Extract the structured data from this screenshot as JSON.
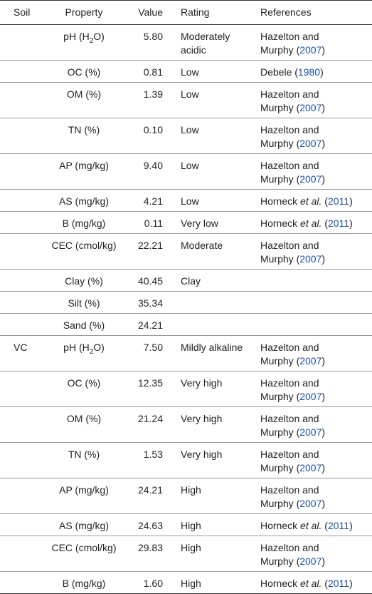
{
  "table": {
    "header": [
      "Soil",
      "Property",
      "Value",
      "Rating",
      "References"
    ],
    "rows": [
      {
        "property": [
          {
            "text": "pH (H"
          },
          {
            "sub": "2"
          },
          {
            "text": "O)"
          }
        ],
        "value": "5.80",
        "rating": "Moderately acidic",
        "references": [
          {
            "text": "Hazelton and Murphy ("
          },
          {
            "link": "2007"
          },
          {
            "text": ")"
          }
        ]
      },
      {
        "property": "OC (%)",
        "value": "0.81",
        "rating": "Low",
        "references": [
          {
            "text": "Debele ("
          },
          {
            "link": "1980"
          },
          {
            "text": ")"
          }
        ]
      },
      {
        "property": "OM (%)",
        "value": "1.39",
        "rating": "Low",
        "references": [
          {
            "text": "Hazelton and Murphy ("
          },
          {
            "link": "2007"
          },
          {
            "text": ")"
          }
        ]
      },
      {
        "property": "TN (%)",
        "value": "0.10",
        "rating": "Low",
        "references": [
          {
            "text": "Hazelton and Murphy ("
          },
          {
            "link": "2007"
          },
          {
            "text": ")"
          }
        ]
      },
      {
        "property": "AP (mg/kg)",
        "value": "9.40",
        "rating": "Low",
        "references": [
          {
            "text": "Hazelton and Murphy ("
          },
          {
            "link": "2007"
          },
          {
            "text": ")"
          }
        ]
      },
      {
        "property": "AS (mg/kg)",
        "value": "4.21",
        "rating": "Low",
        "references": [
          {
            "text": "Horneck "
          },
          {
            "italic": "et al."
          },
          {
            "text": " ("
          },
          {
            "link": "2011"
          },
          {
            "text": ")"
          }
        ]
      },
      {
        "property": "B (mg/kg)",
        "value": "0.11",
        "rating": "Very low",
        "references": [
          {
            "text": "Horneck "
          },
          {
            "italic": "et al."
          },
          {
            "text": " ("
          },
          {
            "link": "2011"
          },
          {
            "text": ")"
          }
        ]
      },
      {
        "property": "CEC (cmol/kg)",
        "value": "22.21",
        "rating": "Moderate",
        "references": [
          {
            "text": "Hazelton and Murphy ("
          },
          {
            "link": "2007"
          },
          {
            "text": ")"
          }
        ]
      },
      {
        "property": "Clay (%)",
        "value": "40.45",
        "rating": "Clay"
      },
      {
        "property": "Silt (%)",
        "value": "35.34"
      },
      {
        "property": "Sand (%)",
        "value": "24.21"
      },
      {
        "soil": "VC",
        "property": [
          {
            "text": "pH (H"
          },
          {
            "sub": "2"
          },
          {
            "text": "O)"
          }
        ],
        "value": "7.50",
        "rating": "Mildly alkaline",
        "references": [
          {
            "text": "Hazelton and Murphy ("
          },
          {
            "link": "2007"
          },
          {
            "text": ")"
          }
        ]
      },
      {
        "property": "OC (%)",
        "value": "12.35",
        "rating": "Very high",
        "references": [
          {
            "text": "Hazelton and Murphy ("
          },
          {
            "link": "2007"
          },
          {
            "text": ")"
          }
        ]
      },
      {
        "property": "OM (%)",
        "value": "21.24",
        "rating": "Very high",
        "references": [
          {
            "text": "Hazelton and Murphy ("
          },
          {
            "link": "2007"
          },
          {
            "text": ")"
          }
        ]
      },
      {
        "property": "TN (%)",
        "value": "1.53",
        "rating": "Very high",
        "references": [
          {
            "text": "Hazelton and Murphy ("
          },
          {
            "link": "2007"
          },
          {
            "text": ")"
          }
        ]
      },
      {
        "property": "AP (mg/kg)",
        "value": "24.21",
        "rating": "High",
        "references": [
          {
            "text": "Hazelton and Murphy ("
          },
          {
            "link": "2007"
          },
          {
            "text": ")"
          }
        ]
      },
      {
        "property": "AS (mg/kg)",
        "value": "24.63",
        "rating": "High",
        "references": [
          {
            "text": "Horneck "
          },
          {
            "italic": "et al."
          },
          {
            "text": " ("
          },
          {
            "link": "2011"
          },
          {
            "text": ")"
          }
        ]
      },
      {
        "property": "CEC (cmol/kg)",
        "value": "29.83",
        "rating": "High",
        "references": [
          {
            "text": "Hazelton and Murphy ("
          },
          {
            "link": "2007"
          },
          {
            "text": ")"
          }
        ]
      },
      {
        "property": "B (mg/kg)",
        "value": "1.60",
        "rating": "High",
        "references": [
          {
            "text": "Horneck "
          },
          {
            "italic": "et al."
          },
          {
            "text": " ("
          },
          {
            "link": "2011"
          },
          {
            "text": ")"
          }
        ]
      }
    ]
  }
}
